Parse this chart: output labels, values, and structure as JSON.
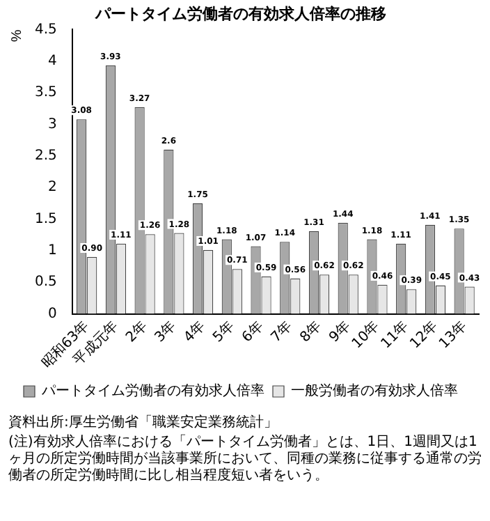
{
  "chart_data": {
    "type": "bar",
    "title": "パートタイム労働者の有効求人倍率の推移",
    "ylabel": "%",
    "categories": [
      "昭和63年",
      "平成元年",
      "2年",
      "3年",
      "4年",
      "5年",
      "6年",
      "7年",
      "8年",
      "9年",
      "10年",
      "11年",
      "12年",
      "13年"
    ],
    "series": [
      {
        "name": "パートタイム労働者の有効求人倍率",
        "color": "#a8a8a8",
        "values": [
          3.08,
          3.93,
          3.27,
          2.6,
          1.75,
          1.18,
          1.07,
          1.14,
          1.31,
          1.44,
          1.18,
          1.11,
          1.41,
          1.35
        ],
        "value_labels": [
          "3.08",
          "3.93",
          "3.27",
          "2.6",
          "1.75",
          "1.18",
          "1.07",
          "1.14",
          "1.31",
          "1.44",
          "1.18",
          "1.11",
          "1.41",
          "1.35"
        ]
      },
      {
        "name": "一般労働者の有効求人倍率",
        "color": "#e6e6e6",
        "values": [
          0.9,
          1.11,
          1.26,
          1.28,
          1.01,
          0.71,
          0.59,
          0.56,
          0.62,
          0.62,
          0.46,
          0.39,
          0.45,
          0.43
        ],
        "value_labels": [
          "0.90",
          "1.11",
          "1.26",
          "1.28",
          "1.01",
          "0.71",
          "0.59",
          "0.56",
          "0.62",
          "0.62",
          "0.46",
          "0.39",
          "0.45",
          "0.43"
        ]
      }
    ],
    "ylim": [
      0,
      4.5
    ],
    "yticks": [
      0,
      0.5,
      1,
      1.5,
      2,
      2.5,
      3,
      3.5,
      4,
      4.5
    ],
    "grid": false,
    "legend": "bottom",
    "annotations": [
      "資料出所:厚生労働省「職業安定業務統計」",
      "(注)有効求人倍率における「パートタイム労働者」とは、1日、1週間又は1ヶ月の所定労働時間が当該事業所において、同種の業務に従事する通常の労働者の所定労働時間に比し相当程度短い者をいう。"
    ]
  }
}
